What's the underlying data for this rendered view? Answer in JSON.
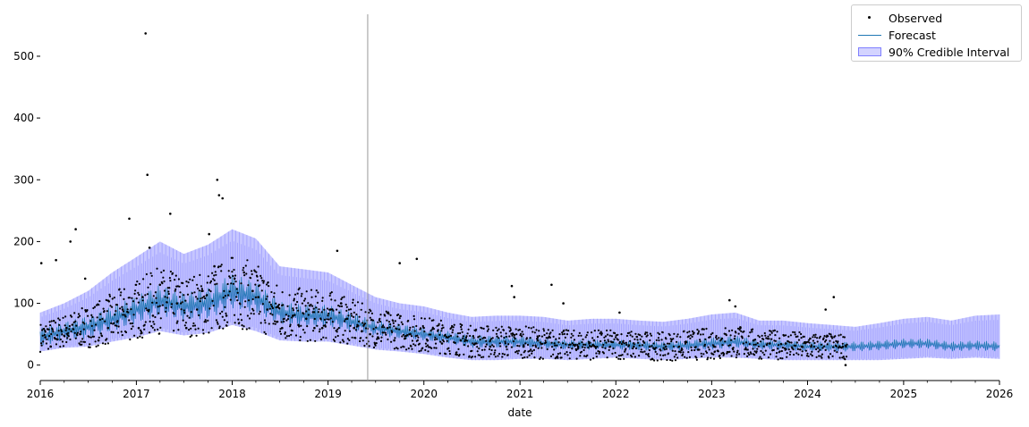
{
  "colors": {
    "observed": "#000000",
    "forecast": "#1f77b4",
    "interval_fill": "#b3b3ff",
    "interval_edge": "#8080ff",
    "cutoff_line": "#999999"
  },
  "legend": {
    "items": [
      {
        "label": "Observed",
        "kind": "dot"
      },
      {
        "label": "Forecast",
        "kind": "line"
      },
      {
        "label": "90% Credible Interval",
        "kind": "patch"
      }
    ],
    "placement": "top-right"
  },
  "chart_data": {
    "type": "line",
    "title": "",
    "xlabel": "date",
    "ylabel": "",
    "xlim": [
      "2016-01-01",
      "2026-01-01"
    ],
    "ylim": [
      -25,
      565
    ],
    "x_ticks": [
      "2016",
      "2017",
      "2018",
      "2019",
      "2020",
      "2021",
      "2022",
      "2023",
      "2024",
      "2025",
      "2026"
    ],
    "y_ticks": [
      0,
      100,
      200,
      300,
      400,
      500
    ],
    "grid": false,
    "cutoff_date": "2019-06-01",
    "observed_end": "2024-06-01",
    "series": [
      {
        "name": "Forecast",
        "kind": "line",
        "x": [
          "2016-01",
          "2016-04",
          "2016-07",
          "2016-10",
          "2017-01",
          "2017-04",
          "2017-07",
          "2017-10",
          "2018-01",
          "2018-04",
          "2018-07",
          "2018-10",
          "2019-01",
          "2019-04",
          "2019-07",
          "2019-10",
          "2020-01",
          "2020-04",
          "2020-07",
          "2020-10",
          "2021-01",
          "2021-04",
          "2021-07",
          "2021-10",
          "2022-01",
          "2022-04",
          "2022-07",
          "2022-10",
          "2023-01",
          "2023-04",
          "2023-07",
          "2023-10",
          "2024-01",
          "2024-04",
          "2024-07",
          "2024-10",
          "2025-01",
          "2025-04",
          "2025-07",
          "2025-10",
          "2026-01"
        ],
        "y": [
          45,
          55,
          62,
          75,
          90,
          105,
          95,
          100,
          120,
          110,
          85,
          80,
          80,
          70,
          60,
          55,
          50,
          45,
          38,
          38,
          38,
          35,
          33,
          33,
          33,
          32,
          30,
          32,
          35,
          38,
          33,
          33,
          30,
          30,
          30,
          32,
          35,
          35,
          30,
          32,
          30
        ],
        "amplitude": [
          15,
          15,
          18,
          20,
          22,
          25,
          22,
          25,
          28,
          25,
          18,
          18,
          18,
          15,
          12,
          12,
          10,
          10,
          10,
          10,
          10,
          8,
          8,
          8,
          8,
          8,
          8,
          8,
          10,
          10,
          8,
          8,
          8,
          8,
          8,
          8,
          8,
          8,
          8,
          8,
          8
        ]
      },
      {
        "name": "90% Credible Interval",
        "kind": "band",
        "x": [
          "2016-01",
          "2016-04",
          "2016-07",
          "2016-10",
          "2017-01",
          "2017-04",
          "2017-07",
          "2017-10",
          "2018-01",
          "2018-04",
          "2018-07",
          "2018-10",
          "2019-01",
          "2019-04",
          "2019-07",
          "2019-10",
          "2020-01",
          "2020-04",
          "2020-07",
          "2020-10",
          "2021-01",
          "2021-04",
          "2021-07",
          "2021-10",
          "2022-01",
          "2022-04",
          "2022-07",
          "2022-10",
          "2023-01",
          "2023-04",
          "2023-07",
          "2023-10",
          "2024-01",
          "2024-04",
          "2024-07",
          "2024-10",
          "2025-01",
          "2025-04",
          "2025-07",
          "2025-10",
          "2026-01"
        ],
        "lower": [
          22,
          28,
          30,
          38,
          45,
          55,
          48,
          52,
          65,
          55,
          40,
          38,
          38,
          32,
          25,
          22,
          18,
          12,
          8,
          8,
          10,
          10,
          8,
          10,
          12,
          10,
          8,
          10,
          12,
          12,
          10,
          8,
          8,
          8,
          8,
          8,
          10,
          12,
          10,
          12,
          10
        ],
        "upper": [
          85,
          100,
          120,
          150,
          175,
          200,
          180,
          195,
          220,
          205,
          160,
          155,
          150,
          130,
          110,
          100,
          95,
          85,
          78,
          80,
          80,
          78,
          72,
          75,
          75,
          72,
          70,
          75,
          82,
          85,
          72,
          72,
          68,
          65,
          62,
          68,
          75,
          78,
          72,
          80,
          82
        ]
      },
      {
        "name": "Observed",
        "kind": "scatter",
        "x": [
          "2016-01-05",
          "2016-01-20",
          "2016-02-10",
          "2016-03-01",
          "2016-04-10",
          "2016-04-25",
          "2016-05-15",
          "2016-06-01",
          "2016-06-20",
          "2016-08-10",
          "2016-09-15",
          "2016-10-20",
          "2016-11-10",
          "2016-12-05",
          "2017-01-10",
          "2017-01-25",
          "2017-02-05",
          "2017-02-12",
          "2017-02-20",
          "2017-03-05",
          "2017-04-01",
          "2017-05-10",
          "2017-06-05",
          "2017-07-10",
          "2017-08-20",
          "2017-09-10",
          "2017-10-05",
          "2017-10-25",
          "2017-11-05",
          "2017-11-12",
          "2017-11-25",
          "2017-12-10",
          "2018-01-10",
          "2018-02-15",
          "2018-03-20",
          "2018-04-10",
          "2018-05-15",
          "2018-06-20",
          "2018-07-10",
          "2018-08-20",
          "2018-09-10",
          "2018-10-10",
          "2018-11-10",
          "2018-12-10",
          "2019-01-10",
          "2019-02-05",
          "2019-02-20",
          "2019-03-15",
          "2019-04-10",
          "2019-05-10",
          "2019-06-10",
          "2019-07-10",
          "2019-08-15",
          "2019-09-10",
          "2019-10-01",
          "2019-11-10",
          "2019-12-05",
          "2020-01-15",
          "2020-03-10",
          "2020-05-20",
          "2020-07-15",
          "2020-09-10",
          "2020-11-10",
          "2020-12-01",
          "2020-12-10",
          "2021-01-15",
          "2021-03-10",
          "2021-05-01",
          "2021-06-15",
          "2021-08-10",
          "2021-10-10",
          "2021-12-10",
          "2022-01-15",
          "2022-03-10",
          "2022-05-10",
          "2022-07-10",
          "2022-09-10",
          "2022-11-10",
          "2023-01-10",
          "2023-03-10",
          "2023-04-01",
          "2023-04-20",
          "2023-06-10",
          "2023-08-10",
          "2023-10-10",
          "2023-12-10",
          "2024-01-15",
          "2024-03-10",
          "2024-04-10",
          "2024-05-15",
          "2024-05-25"
        ],
        "y": [
          165,
          45,
          30,
          170,
          60,
          200,
          220,
          50,
          140,
          40,
          60,
          70,
          90,
          237,
          60,
          110,
          537,
          308,
          190,
          80,
          130,
          245,
          100,
          60,
          90,
          120,
          212,
          160,
          300,
          275,
          270,
          80,
          140,
          150,
          120,
          110,
          90,
          70,
          60,
          80,
          65,
          75,
          60,
          60,
          90,
          185,
          100,
          75,
          60,
          55,
          50,
          45,
          60,
          40,
          165,
          50,
          172,
          40,
          35,
          40,
          35,
          30,
          30,
          128,
          110,
          30,
          40,
          130,
          100,
          30,
          40,
          30,
          85,
          30,
          30,
          30,
          25,
          25,
          30,
          105,
          95,
          60,
          40,
          35,
          35,
          30,
          30,
          90,
          110,
          30,
          0
        ]
      }
    ]
  }
}
